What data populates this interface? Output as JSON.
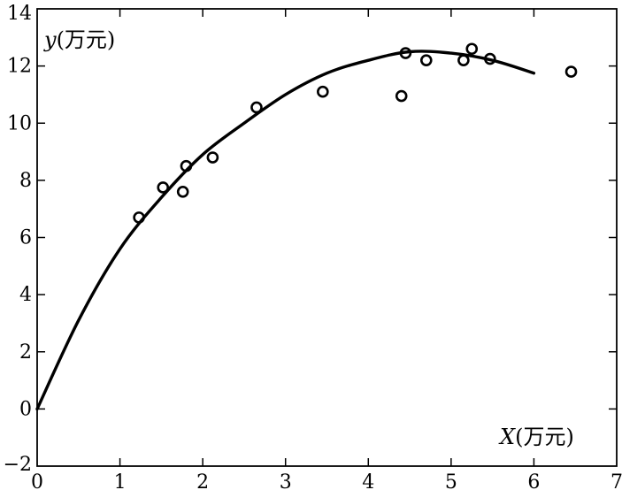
{
  "chart_data": {
    "type": "scatter",
    "title": "",
    "xlabel": "X(万元)",
    "ylabel": "y(万元)",
    "xlim": [
      0,
      7
    ],
    "ylim": [
      -2,
      14
    ],
    "x_ticks": [
      0,
      1,
      2,
      3,
      4,
      5,
      6,
      7
    ],
    "y_ticks": [
      -2,
      0,
      2,
      4,
      6,
      8,
      10,
      12,
      14
    ],
    "grid": false,
    "legend": "none",
    "series": [
      {
        "kind": "scatter",
        "marker": "open-circle",
        "points": [
          [
            1.23,
            6.7
          ],
          [
            1.52,
            7.75
          ],
          [
            1.76,
            7.6
          ],
          [
            1.8,
            8.5
          ],
          [
            2.12,
            8.8
          ],
          [
            2.65,
            10.55
          ],
          [
            3.45,
            11.1
          ],
          [
            4.4,
            10.95
          ],
          [
            4.45,
            12.45
          ],
          [
            4.7,
            12.2
          ],
          [
            5.15,
            12.2
          ],
          [
            5.25,
            12.6
          ],
          [
            5.47,
            12.25
          ],
          [
            6.45,
            11.8
          ]
        ]
      },
      {
        "kind": "line",
        "style": "smooth",
        "points": [
          [
            0,
            0
          ],
          [
            0.5,
            3.1
          ],
          [
            1.0,
            5.6
          ],
          [
            1.5,
            7.4
          ],
          [
            2.0,
            8.9
          ],
          [
            2.5,
            10.0
          ],
          [
            3.0,
            11.0
          ],
          [
            3.5,
            11.75
          ],
          [
            4.0,
            12.2
          ],
          [
            4.5,
            12.5
          ],
          [
            5.0,
            12.45
          ],
          [
            5.5,
            12.2
          ],
          [
            6.0,
            11.75
          ]
        ]
      }
    ]
  }
}
